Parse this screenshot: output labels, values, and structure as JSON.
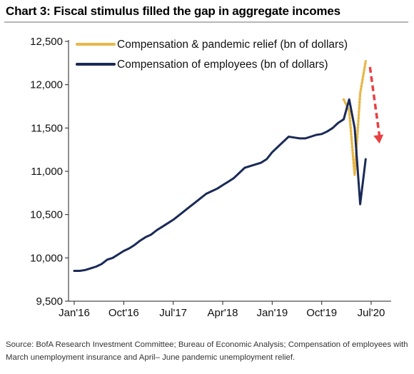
{
  "title": "Chart 3: Fiscal stimulus filled the gap in aggregate incomes",
  "source": "Source: BofA Research Investment Committee; Bureau of Economic Analysis; Compensation of employees with March unemployment insurance and April– June pandemic unemployment relief.",
  "chart_data": {
    "type": "line",
    "x_tick_labels": [
      "Jan'16",
      "Oct'16",
      "Jul'17",
      "Apr'18",
      "Jan'19",
      "Oct'19",
      "Jul'20"
    ],
    "y_tick_labels": [
      "9,500",
      "10,000",
      "10,500",
      "11,000",
      "11,500",
      "12,000",
      "12,500"
    ],
    "ylim": [
      9500,
      12500
    ],
    "xlim": [
      "2016-01",
      "2020-07"
    ],
    "grid": false,
    "legend_position": "top-left",
    "series": [
      {
        "name": "Compensation & pandemic relief (bn of dollars)",
        "color": "#e6b84a",
        "style": "dotted",
        "x": [
          "2020-02",
          "2020-03",
          "2020-04",
          "2020-05",
          "2020-06"
        ],
        "y": [
          11830,
          11700,
          10950,
          11900,
          12270
        ]
      },
      {
        "name": "Compensation of employees (bn of dollars)",
        "color": "#1a2a57",
        "style": "solid",
        "x": [
          "2016-01",
          "2016-02",
          "2016-03",
          "2016-04",
          "2016-05",
          "2016-06",
          "2016-07",
          "2016-08",
          "2016-09",
          "2016-10",
          "2016-11",
          "2016-12",
          "2017-01",
          "2017-02",
          "2017-03",
          "2017-04",
          "2017-05",
          "2017-06",
          "2017-07",
          "2017-08",
          "2017-09",
          "2017-10",
          "2017-11",
          "2017-12",
          "2018-01",
          "2018-02",
          "2018-03",
          "2018-04",
          "2018-05",
          "2018-06",
          "2018-07",
          "2018-08",
          "2018-09",
          "2018-10",
          "2018-11",
          "2018-12",
          "2019-01",
          "2019-02",
          "2019-03",
          "2019-04",
          "2019-05",
          "2019-06",
          "2019-07",
          "2019-08",
          "2019-09",
          "2019-10",
          "2019-11",
          "2019-12",
          "2020-01",
          "2020-02",
          "2020-03",
          "2020-04",
          "2020-05",
          "2020-06"
        ],
        "y": [
          9850,
          9850,
          9860,
          9880,
          9900,
          9930,
          9980,
          10000,
          10040,
          10080,
          10110,
          10150,
          10200,
          10240,
          10270,
          10320,
          10360,
          10400,
          10440,
          10490,
          10540,
          10590,
          10640,
          10690,
          10740,
          10770,
          10800,
          10840,
          10880,
          10920,
          10980,
          11040,
          11060,
          11080,
          11100,
          11140,
          11220,
          11280,
          11340,
          11400,
          11390,
          11380,
          11380,
          11400,
          11420,
          11430,
          11460,
          11500,
          11560,
          11600,
          11830,
          11500,
          10620,
          11140
        ]
      }
    ],
    "annotation": {
      "arrow_color": "#e84040",
      "from": [
        "2020-06",
        12270
      ],
      "to": [
        "2020-08",
        11320
      ]
    }
  }
}
